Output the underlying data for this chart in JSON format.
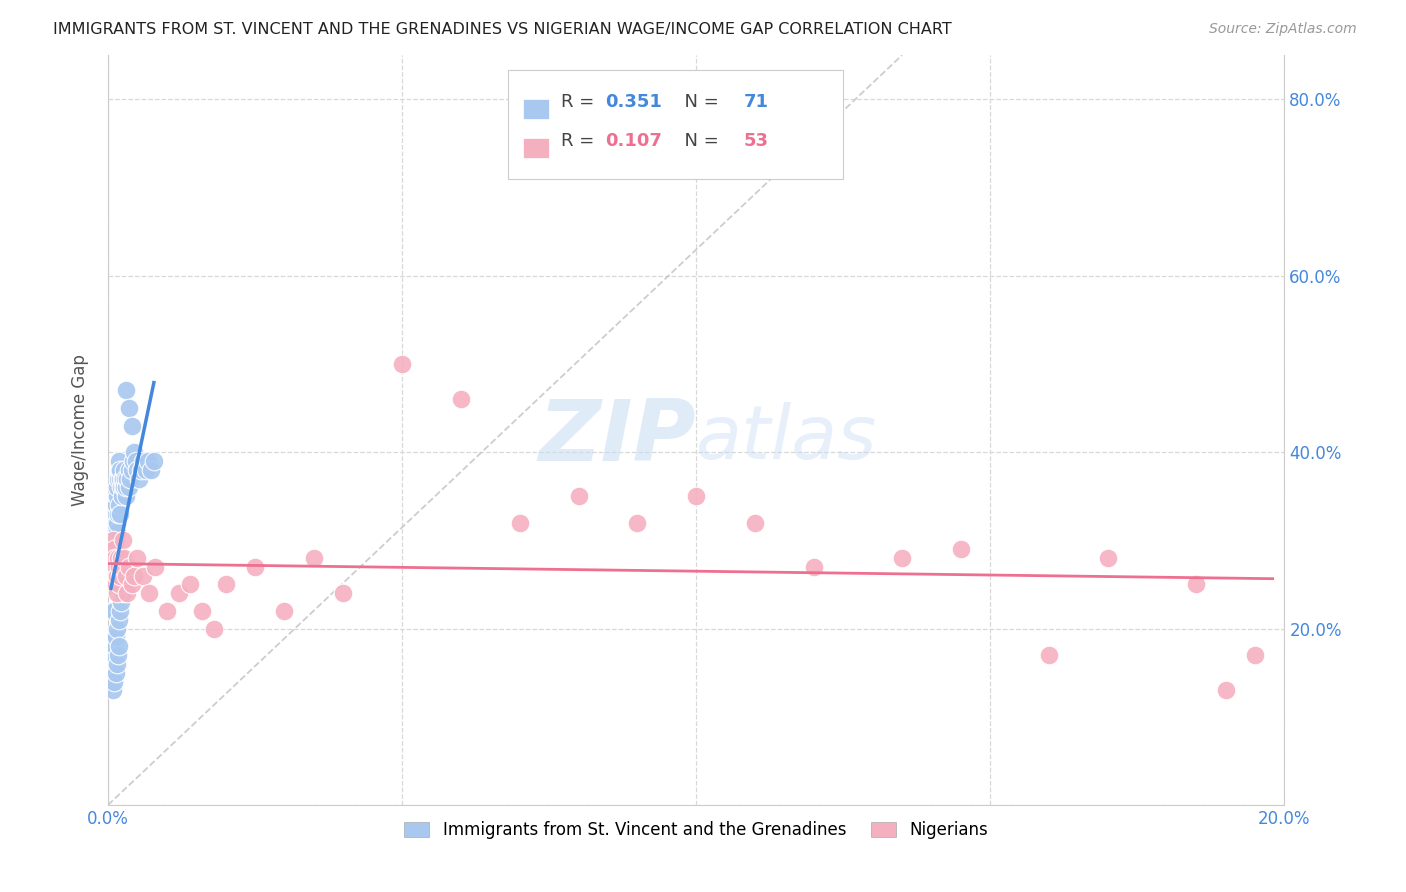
{
  "title": "IMMIGRANTS FROM ST. VINCENT AND THE GRENADINES VS NIGERIAN WAGE/INCOME GAP CORRELATION CHART",
  "source": "Source: ZipAtlas.com",
  "ylabel": "Wage/Income Gap",
  "xlim": [
    0.0,
    0.2
  ],
  "ylim": [
    0.0,
    0.85
  ],
  "blue_R": "0.351",
  "blue_N": "71",
  "pink_R": "0.107",
  "pink_N": "53",
  "blue_color": "#a8c8f0",
  "pink_color": "#f5b0c0",
  "blue_line_color": "#4488dd",
  "pink_line_color": "#ee7090",
  "diag_line_color": "#c8c8c8",
  "legend_label_blue": "Immigrants from St. Vincent and the Grenadines",
  "legend_label_pink": "Nigerians",
  "watermark_color": "#c8dcf4",
  "blue_x": [
    0.0005,
    0.0006,
    0.0007,
    0.0008,
    0.0009,
    0.001,
    0.001,
    0.001,
    0.001,
    0.0011,
    0.0011,
    0.0012,
    0.0012,
    0.0013,
    0.0013,
    0.0013,
    0.0014,
    0.0014,
    0.0015,
    0.0015,
    0.0016,
    0.0016,
    0.0017,
    0.0017,
    0.0018,
    0.0018,
    0.0019,
    0.002,
    0.002,
    0.0021,
    0.0022,
    0.0023,
    0.0024,
    0.0025,
    0.0026,
    0.0027,
    0.0028,
    0.0029,
    0.003,
    0.0031,
    0.0033,
    0.0035,
    0.0036,
    0.0038,
    0.004,
    0.0042,
    0.0044,
    0.0047,
    0.005,
    0.0053,
    0.0056,
    0.006,
    0.0064,
    0.0068,
    0.0073,
    0.0078,
    0.0008,
    0.0009,
    0.001,
    0.0011,
    0.0012,
    0.0013,
    0.0014,
    0.0015,
    0.0016,
    0.0017,
    0.0018,
    0.0019,
    0.002,
    0.0022,
    0.0025
  ],
  "blue_y": [
    0.26,
    0.14,
    0.22,
    0.18,
    0.3,
    0.28,
    0.25,
    0.22,
    0.19,
    0.32,
    0.29,
    0.31,
    0.27,
    0.33,
    0.29,
    0.26,
    0.34,
    0.3,
    0.35,
    0.31,
    0.36,
    0.32,
    0.37,
    0.33,
    0.38,
    0.34,
    0.39,
    0.37,
    0.33,
    0.38,
    0.36,
    0.37,
    0.35,
    0.36,
    0.37,
    0.38,
    0.36,
    0.37,
    0.35,
    0.36,
    0.37,
    0.38,
    0.36,
    0.37,
    0.38,
    0.39,
    0.4,
    0.39,
    0.38,
    0.37,
    0.38,
    0.39,
    0.38,
    0.39,
    0.38,
    0.39,
    0.16,
    0.13,
    0.17,
    0.14,
    0.18,
    0.15,
    0.19,
    0.16,
    0.2,
    0.17,
    0.21,
    0.18,
    0.22,
    0.23,
    0.24
  ],
  "pink_x": [
    0.0006,
    0.0007,
    0.0008,
    0.0009,
    0.001,
    0.0011,
    0.0012,
    0.0013,
    0.0014,
    0.0015,
    0.0016,
    0.0017,
    0.0018,
    0.0019,
    0.002,
    0.0022,
    0.0024,
    0.0026,
    0.0028,
    0.003,
    0.0033,
    0.0036,
    0.004,
    0.0045,
    0.005,
    0.006,
    0.007,
    0.008,
    0.01,
    0.012,
    0.014,
    0.016,
    0.018,
    0.02,
    0.025,
    0.03,
    0.035,
    0.04,
    0.05,
    0.06,
    0.07,
    0.08,
    0.09,
    0.1,
    0.11,
    0.12,
    0.135,
    0.145,
    0.16,
    0.17,
    0.185,
    0.19,
    0.195
  ],
  "pink_y": [
    0.28,
    0.25,
    0.3,
    0.27,
    0.29,
    0.26,
    0.28,
    0.25,
    0.27,
    0.24,
    0.26,
    0.28,
    0.25,
    0.27,
    0.26,
    0.28,
    0.27,
    0.3,
    0.28,
    0.26,
    0.24,
    0.27,
    0.25,
    0.26,
    0.28,
    0.26,
    0.24,
    0.27,
    0.22,
    0.24,
    0.25,
    0.22,
    0.2,
    0.25,
    0.27,
    0.22,
    0.28,
    0.24,
    0.5,
    0.46,
    0.32,
    0.35,
    0.32,
    0.35,
    0.32,
    0.27,
    0.28,
    0.29,
    0.17,
    0.28,
    0.25,
    0.13,
    0.17
  ]
}
